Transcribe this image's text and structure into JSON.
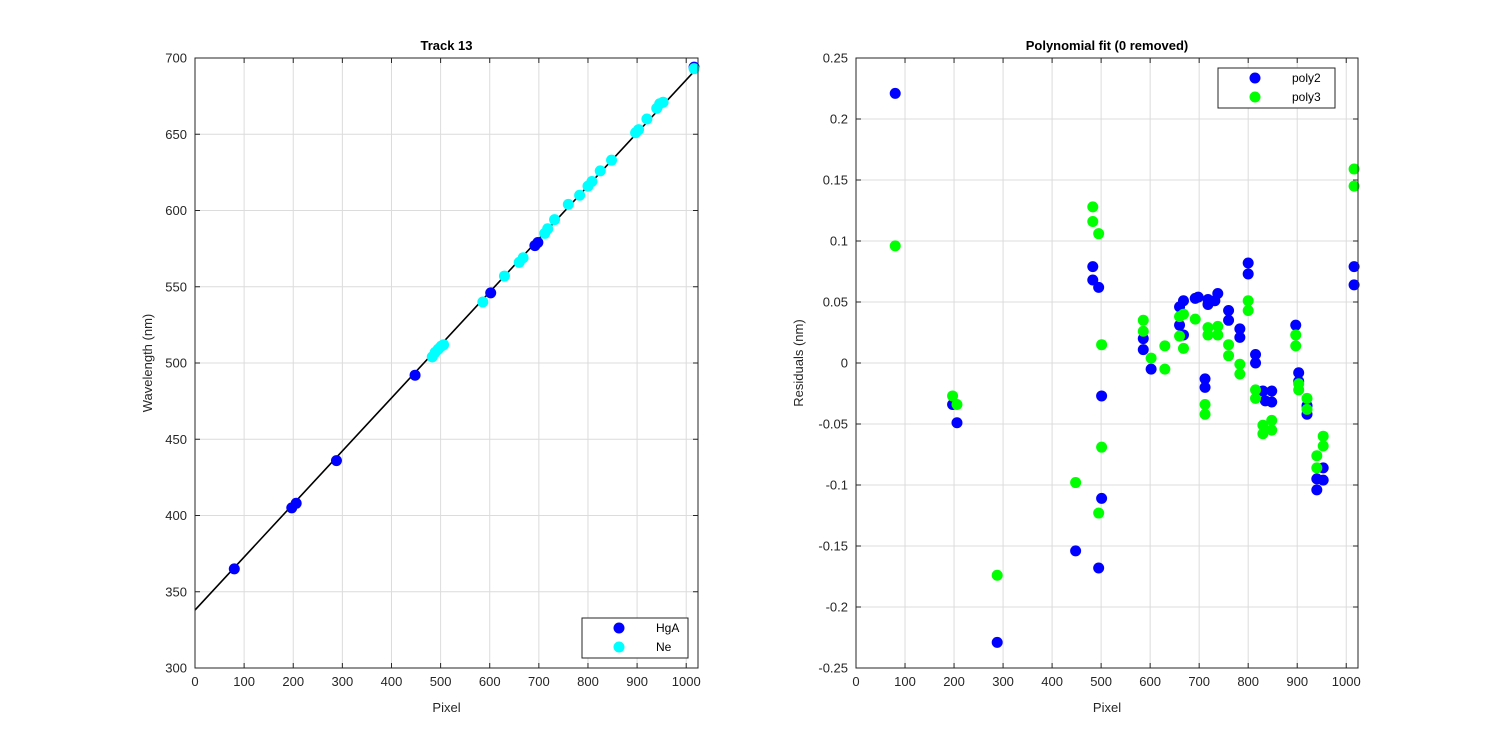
{
  "chart_data": [
    {
      "type": "scatter",
      "title": "Track 13",
      "xlabel": "Pixel",
      "ylabel": "Wavelength (nm)",
      "xlim": [
        0,
        1024
      ],
      "ylim": [
        300,
        700
      ],
      "xticks": [
        0,
        100,
        200,
        300,
        400,
        500,
        600,
        700,
        800,
        900,
        1000
      ],
      "yticks": [
        300,
        350,
        400,
        450,
        500,
        550,
        600,
        650,
        700
      ],
      "grid": true,
      "legend_position": "bottom-right",
      "fit_line": {
        "x": [
          0,
          1024
        ],
        "y": [
          338,
          694
        ]
      },
      "series": [
        {
          "name": "HgA",
          "color": "#0000ff",
          "points": [
            [
              80,
              365
            ],
            [
              197,
              405
            ],
            [
              206,
              408
            ],
            [
              288,
              436
            ],
            [
              448,
              492
            ],
            [
              602,
              546
            ],
            [
              692,
              577
            ],
            [
              698,
              579
            ],
            [
              1016,
              694
            ]
          ]
        },
        {
          "name": "Ne",
          "color": "#00ffff",
          "points": [
            [
              483,
              504
            ],
            [
              489,
              507
            ],
            [
              495,
              509
            ],
            [
              501,
              511
            ],
            [
              506,
              512
            ],
            [
              586,
              540
            ],
            [
              630,
              557
            ],
            [
              660,
              566
            ],
            [
              668,
              569
            ],
            [
              712,
              585
            ],
            [
              718,
              588
            ],
            [
              732,
              594
            ],
            [
              760,
              604
            ],
            [
              783,
              610
            ],
            [
              800,
              616
            ],
            [
              808,
              619
            ],
            [
              825,
              626
            ],
            [
              848,
              633
            ],
            [
              897,
              651
            ],
            [
              903,
              653
            ],
            [
              920,
              660
            ],
            [
              940,
              667
            ],
            [
              946,
              670
            ],
            [
              953,
              671
            ],
            [
              1016,
              693
            ]
          ]
        }
      ]
    },
    {
      "type": "scatter",
      "title": "Polynomial fit  (0 removed)",
      "xlabel": "Pixel",
      "ylabel": "Residuals (nm)",
      "xlim": [
        0,
        1024
      ],
      "ylim": [
        -0.25,
        0.25
      ],
      "xticks": [
        0,
        100,
        200,
        300,
        400,
        500,
        600,
        700,
        800,
        900,
        1000
      ],
      "yticks": [
        -0.25,
        -0.2,
        -0.15,
        -0.1,
        -0.05,
        0,
        0.05,
        0.1,
        0.15,
        0.2,
        0.25
      ],
      "yticklabels": [
        "-0.25",
        "-0.2",
        "-0.15",
        "-0.1",
        "-0.05",
        "0",
        "0.05",
        "0.1",
        "0.15",
        "0.2",
        "0.25"
      ],
      "grid": true,
      "legend_position": "top-right",
      "series": [
        {
          "name": "poly2",
          "color": "#0000ff",
          "points": [
            [
              80,
              0.221
            ],
            [
              197,
              -0.034
            ],
            [
              206,
              -0.049
            ],
            [
              288,
              -0.229
            ],
            [
              448,
              -0.154
            ],
            [
              483,
              0.079
            ],
            [
              483,
              0.068
            ],
            [
              495,
              0.062
            ],
            [
              495,
              -0.168
            ],
            [
              501,
              -0.027
            ],
            [
              501,
              -0.111
            ],
            [
              586,
              0.02
            ],
            [
              586,
              0.011
            ],
            [
              602,
              -0.005
            ],
            [
              660,
              0.046
            ],
            [
              660,
              0.031
            ],
            [
              668,
              0.051
            ],
            [
              668,
              0.023
            ],
            [
              692,
              0.053
            ],
            [
              698,
              0.054
            ],
            [
              712,
              -0.013
            ],
            [
              712,
              -0.02
            ],
            [
              718,
              0.048
            ],
            [
              718,
              0.052
            ],
            [
              732,
              0.051
            ],
            [
              738,
              0.057
            ],
            [
              760,
              0.043
            ],
            [
              760,
              0.035
            ],
            [
              783,
              0.028
            ],
            [
              783,
              0.021
            ],
            [
              800,
              0.082
            ],
            [
              800,
              0.073
            ],
            [
              815,
              0.007
            ],
            [
              815,
              0.0
            ],
            [
              830,
              -0.023
            ],
            [
              835,
              -0.031
            ],
            [
              848,
              -0.023
            ],
            [
              848,
              -0.032
            ],
            [
              897,
              0.031
            ],
            [
              903,
              -0.008
            ],
            [
              903,
              -0.015
            ],
            [
              920,
              -0.035
            ],
            [
              920,
              -0.042
            ],
            [
              940,
              -0.095
            ],
            [
              940,
              -0.104
            ],
            [
              953,
              -0.086
            ],
            [
              953,
              -0.096
            ],
            [
              1016,
              0.079
            ],
            [
              1016,
              0.064
            ]
          ]
        },
        {
          "name": "poly3",
          "color": "#00ff00",
          "points": [
            [
              80,
              0.096
            ],
            [
              197,
              -0.027
            ],
            [
              206,
              -0.034
            ],
            [
              288,
              -0.174
            ],
            [
              448,
              -0.098
            ],
            [
              483,
              0.128
            ],
            [
              483,
              0.116
            ],
            [
              495,
              0.106
            ],
            [
              495,
              -0.123
            ],
            [
              501,
              0.015
            ],
            [
              501,
              -0.069
            ],
            [
              586,
              0.035
            ],
            [
              586,
              0.026
            ],
            [
              602,
              0.004
            ],
            [
              630,
              0.014
            ],
            [
              630,
              -0.005
            ],
            [
              660,
              0.038
            ],
            [
              660,
              0.022
            ],
            [
              668,
              0.04
            ],
            [
              668,
              0.012
            ],
            [
              692,
              0.036
            ],
            [
              712,
              -0.034
            ],
            [
              712,
              -0.042
            ],
            [
              718,
              0.029
            ],
            [
              718,
              0.023
            ],
            [
              738,
              0.03
            ],
            [
              738,
              0.023
            ],
            [
              760,
              0.015
            ],
            [
              760,
              0.006
            ],
            [
              783,
              -0.001
            ],
            [
              783,
              -0.009
            ],
            [
              800,
              0.051
            ],
            [
              800,
              0.043
            ],
            [
              815,
              -0.022
            ],
            [
              815,
              -0.029
            ],
            [
              830,
              -0.051
            ],
            [
              830,
              -0.058
            ],
            [
              848,
              -0.047
            ],
            [
              848,
              -0.055
            ],
            [
              897,
              0.023
            ],
            [
              897,
              0.014
            ],
            [
              903,
              -0.017
            ],
            [
              903,
              -0.022
            ],
            [
              920,
              -0.029
            ],
            [
              920,
              -0.038
            ],
            [
              940,
              -0.076
            ],
            [
              940,
              -0.086
            ],
            [
              953,
              -0.06
            ],
            [
              953,
              -0.068
            ],
            [
              1016,
              0.159
            ],
            [
              1016,
              0.145
            ]
          ]
        }
      ]
    }
  ]
}
